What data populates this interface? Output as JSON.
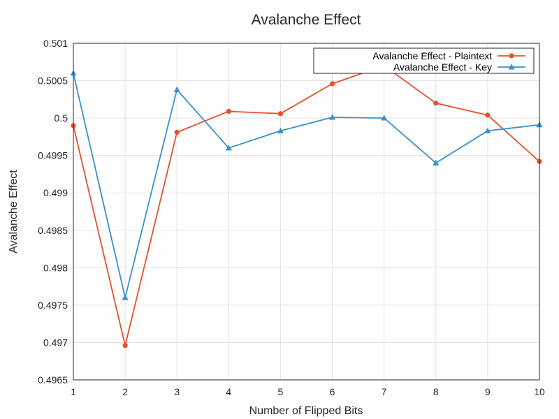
{
  "chart_data": {
    "type": "line",
    "title": "Avalanche Effect",
    "xlabel": "Number of Flipped Bits",
    "ylabel": "Avalanche Effect",
    "x": [
      1,
      2,
      3,
      4,
      5,
      6,
      7,
      8,
      9,
      10
    ],
    "xlim": [
      1,
      10
    ],
    "ylim": [
      0.4965,
      0.501
    ],
    "xticks": [
      "1",
      "2",
      "3",
      "4",
      "5",
      "6",
      "7",
      "8",
      "9",
      "10"
    ],
    "yticks": [
      0.4965,
      0.497,
      0.4975,
      0.498,
      0.4985,
      0.499,
      0.4995,
      0.5,
      0.5005,
      0.501
    ],
    "ytick_labels": [
      "0.4965",
      "0.497",
      "0.4975",
      "0.498",
      "0.4985",
      "0.499",
      "0.4995",
      "0.5",
      "0.5005",
      "0.501"
    ],
    "grid": true,
    "legend_position": "top-right",
    "series": [
      {
        "name": "Avalanche Effect - Plaintext",
        "color": "#e8502e",
        "marker": "circle",
        "values": [
          0.4999,
          0.49696,
          0.49981,
          0.50009,
          0.50006,
          0.50046,
          0.5007,
          0.5002,
          0.50004,
          0.49942
        ]
      },
      {
        "name": "Avalanche Effect - Key",
        "color": "#3b8fcc",
        "marker": "triangle",
        "values": [
          0.5006,
          0.4976,
          0.50038,
          0.4996,
          0.49983,
          0.50001,
          0.5,
          0.4994,
          0.49983,
          0.49991
        ]
      }
    ]
  }
}
